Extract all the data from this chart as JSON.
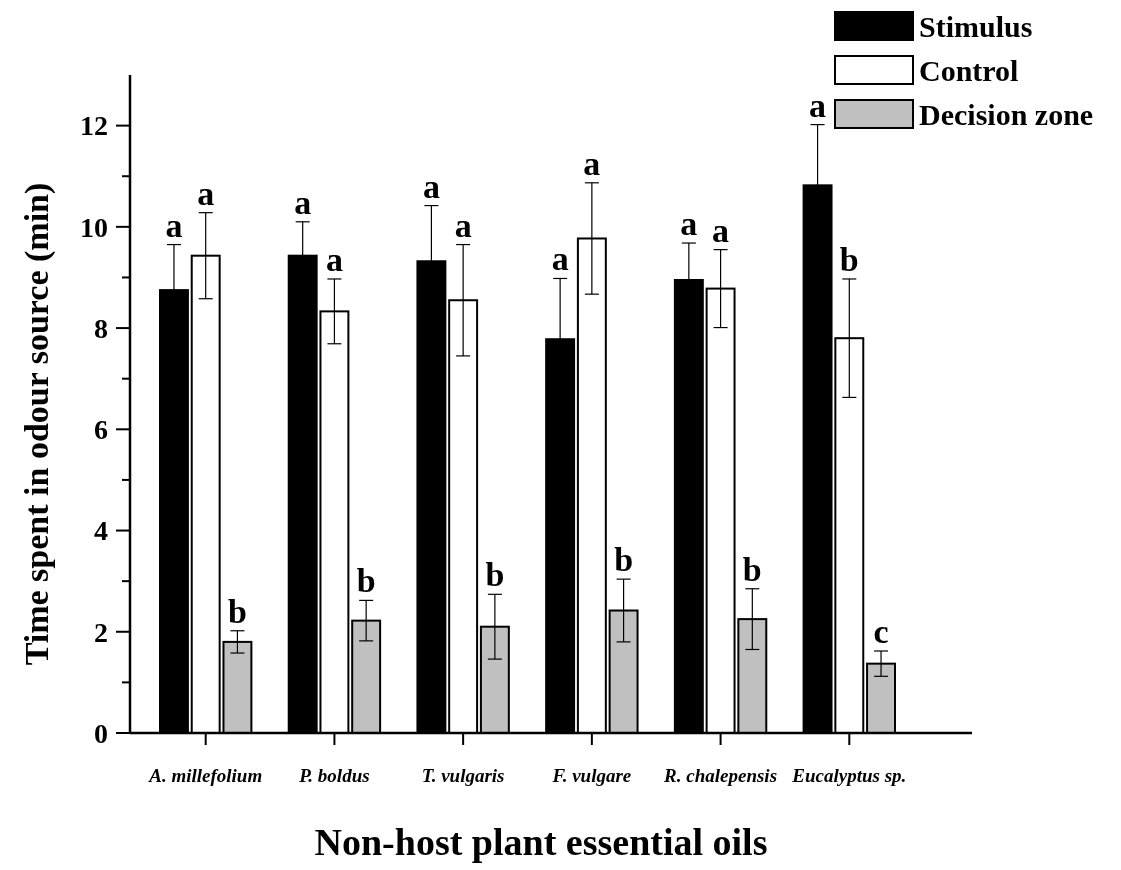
{
  "chart_data": {
    "type": "bar",
    "xlabel": "Non-host plant essential oils",
    "ylabel": "Time spent in odour source (min)",
    "categories": [
      "A. millefolium",
      "P. boldus",
      "T. vulgaris",
      "F. vulgare",
      "R. chalepensis",
      "Eucalyptus sp."
    ],
    "series": [
      {
        "name": "Stimulus",
        "color": "#000000",
        "values": [
          8.75,
          9.43,
          9.32,
          7.78,
          8.95,
          10.82
        ],
        "errors": [
          0.9,
          0.67,
          1.1,
          1.2,
          0.73,
          1.2
        ],
        "value_labels": [
          "a",
          "a",
          "a",
          "a",
          "a",
          "a"
        ]
      },
      {
        "name": "Control",
        "color": "#ffffff",
        "values": [
          9.43,
          8.33,
          8.55,
          9.77,
          8.78,
          7.8
        ],
        "errors": [
          0.85,
          0.64,
          1.1,
          1.1,
          0.77,
          1.17
        ],
        "value_labels": [
          "a",
          "a",
          "a",
          "a",
          "a",
          "b"
        ]
      },
      {
        "name": "Decision zone",
        "color": "#c0c0c0",
        "values": [
          1.8,
          2.22,
          2.1,
          2.42,
          2.25,
          1.37
        ],
        "errors": [
          0.22,
          0.4,
          0.64,
          0.62,
          0.6,
          0.25
        ],
        "value_labels": [
          "b",
          "b",
          "b",
          "b",
          "b",
          "c"
        ]
      }
    ],
    "ylim": [
      0,
      13
    ],
    "yticks": [
      0,
      {
        "value": 1,
        "label": null
      },
      2,
      {
        "value": 3,
        "label": null
      },
      4,
      {
        "value": 5,
        "label": null
      },
      6,
      {
        "value": 7,
        "label": null
      },
      8,
      {
        "value": 9,
        "label": null
      },
      10,
      {
        "value": 11,
        "label": null
      },
      12
    ],
    "grid": false,
    "legend": "top right"
  }
}
